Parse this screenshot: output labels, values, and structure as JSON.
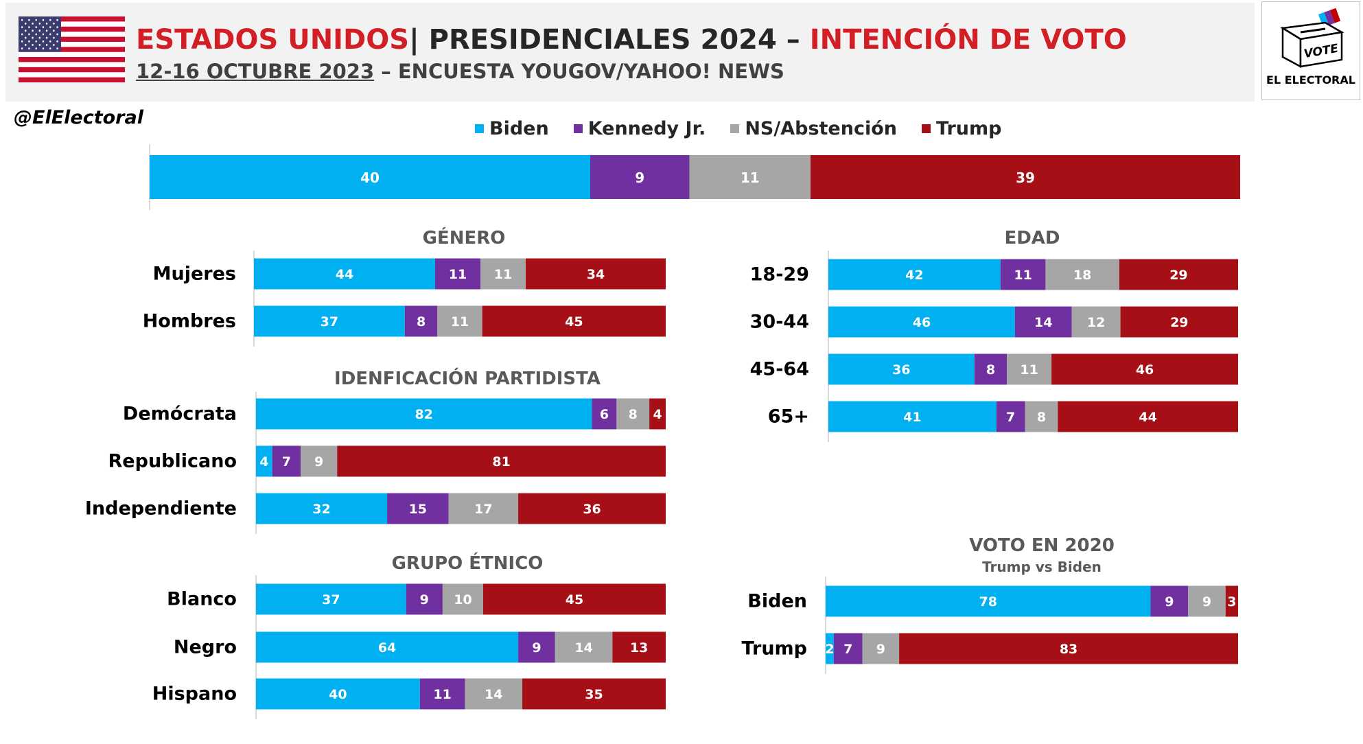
{
  "header": {
    "title_country": "ESTADOS UNIDOS",
    "title_separator": "|",
    "title_event": "PRESIDENCIALES 2024",
    "title_dash": " – ",
    "title_topic": "INTENCIÓN DE VOTO",
    "subtitle_date": "12-16 OCTUBRE 2023",
    "subtitle_rest": " – ENCUESTA YOUGOV/YAHOO!  NEWS",
    "handle": "@ElElectoral",
    "logo_text": "EL ELECTORAL",
    "logo_vote": "VOTE"
  },
  "colors": {
    "title_red": "#d21f26",
    "biden": "#00b0f0",
    "kennedy": "#7030a0",
    "ns": "#a6a6a6",
    "trump": "#a50f15"
  },
  "chart_data": {
    "type": "bar",
    "orientation": "horizontal",
    "stacked": true,
    "unit": "%",
    "series_names": [
      "Biden",
      "Kennedy Jr.",
      "NS/Abstención",
      "Trump"
    ],
    "legend_position": "top",
    "grid": false,
    "overall": [
      40,
      9,
      11,
      39
    ],
    "panels": [
      {
        "id": "genero",
        "title": "GÉNERO",
        "subtitle": "",
        "rows": [
          {
            "label": "Mujeres",
            "values": [
              44,
              11,
              11,
              34
            ]
          },
          {
            "label": "Hombres",
            "values": [
              37,
              8,
              11,
              45
            ]
          }
        ]
      },
      {
        "id": "partido",
        "title": "IDENFICACIÓN PARTIDISTA",
        "subtitle": "",
        "rows": [
          {
            "label": "Demócrata",
            "values": [
              82,
              6,
              8,
              4
            ]
          },
          {
            "label": "Republicano",
            "values": [
              4,
              7,
              9,
              81
            ]
          },
          {
            "label": "Independiente",
            "values": [
              32,
              15,
              17,
              36
            ]
          }
        ]
      },
      {
        "id": "etnico",
        "title": "GRUPO ÉTNICO",
        "subtitle": "",
        "rows": [
          {
            "label": "Blanco",
            "values": [
              37,
              9,
              10,
              45
            ]
          },
          {
            "label": "Negro",
            "values": [
              64,
              9,
              14,
              13
            ]
          },
          {
            "label": "Hispano",
            "values": [
              40,
              11,
              14,
              35
            ]
          }
        ]
      },
      {
        "id": "edad",
        "title": "EDAD",
        "subtitle": "",
        "rows": [
          {
            "label": "18-29",
            "values": [
              42,
              11,
              18,
              29
            ]
          },
          {
            "label": "30-44",
            "values": [
              46,
              14,
              12,
              29
            ]
          },
          {
            "label": "45-64",
            "values": [
              36,
              8,
              11,
              46
            ]
          },
          {
            "label": "65+",
            "values": [
              41,
              7,
              8,
              44
            ]
          }
        ]
      },
      {
        "id": "voto2020",
        "title": "VOTO EN 2020",
        "subtitle": "Trump vs Biden",
        "rows": [
          {
            "label": "Biden",
            "values": [
              78,
              9,
              9,
              3
            ]
          },
          {
            "label": "Trump",
            "values": [
              2,
              7,
              9,
              83
            ]
          }
        ]
      }
    ]
  }
}
